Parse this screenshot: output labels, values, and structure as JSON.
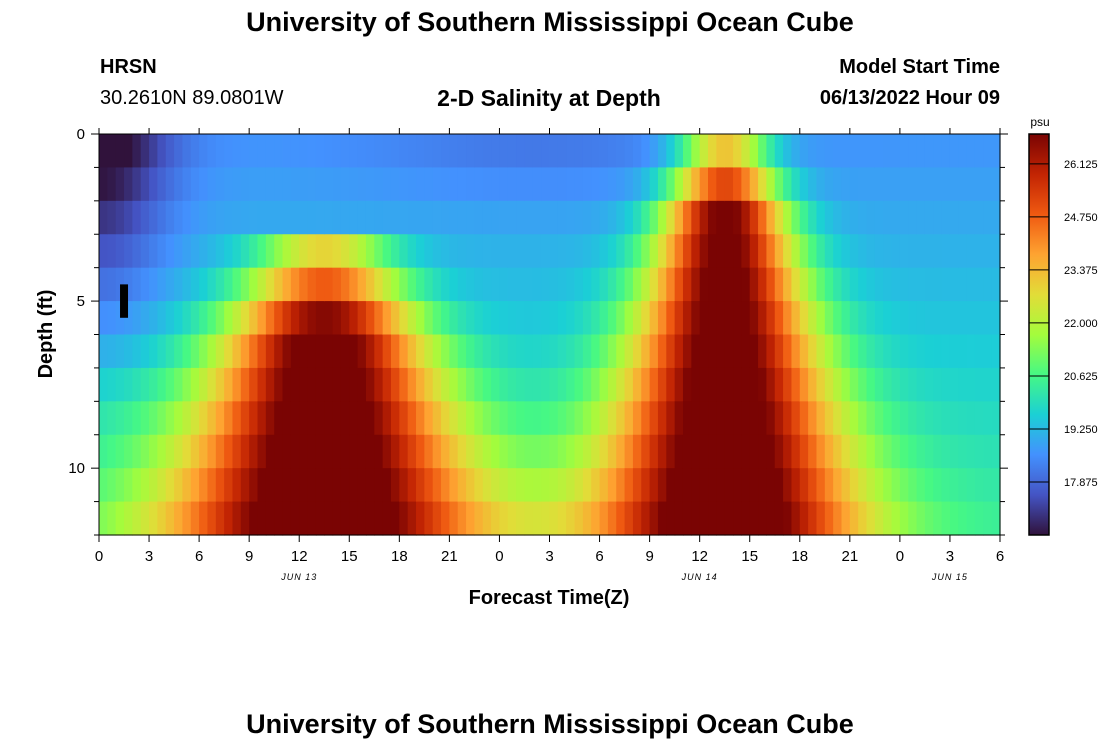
{
  "header": {
    "title": "University of Southern Mississippi Ocean Cube",
    "station": "HRSN",
    "coordinates": "30.2610N  89.0801W",
    "chart_title": "2-D Salinity at Depth",
    "model_start_label": "Model Start Time",
    "model_start_value": "06/13/2022 Hour 09"
  },
  "footer": {
    "title": "University of Southern Mississippi Ocean Cube"
  },
  "chart_data": {
    "type": "heatmap",
    "title": "2-D Salinity at Depth",
    "xlabel": "Forecast Time(Z)",
    "ylabel": "Depth (ft)",
    "x_tick_labels": [
      "0",
      "3",
      "6",
      "9",
      "12",
      "15",
      "18",
      "21",
      "0",
      "3",
      "6",
      "9",
      "12",
      "15",
      "18",
      "21",
      "0",
      "3",
      "6"
    ],
    "date_labels": [
      {
        "label": "JUN 13",
        "hour": 12
      },
      {
        "label": "JUN 14",
        "hour": 36
      },
      {
        "label": "JUN 15",
        "hour": 51
      }
    ],
    "x_range_hours": [
      0,
      54
    ],
    "y_ticks": [
      0,
      5,
      10
    ],
    "y_range_ft": [
      0,
      12
    ],
    "depth_layers": 12,
    "colorbar": {
      "unit": "psu",
      "ticks": [
        "26.125",
        "24.750",
        "23.375",
        "22.000",
        "20.625",
        "19.250",
        "17.875"
      ],
      "range": [
        16.5,
        26.9
      ],
      "colors": [
        "#30123b",
        "#4454c4",
        "#4391fe",
        "#1bd0d5",
        "#46f884",
        "#a4fc3c",
        "#e2dc38",
        "#fea331",
        "#ef5911",
        "#c22403",
        "#7a0403"
      ]
    },
    "model": {
      "background": 18.6,
      "surface_low": 16.6,
      "tidal_peaks": [
        {
          "center_hour": 13.5,
          "amplitude": 8.2,
          "half_width_top": 4.0,
          "half_width_bottom": 9.5,
          "depth_top": 3.5
        },
        {
          "center_hour": 37.5,
          "amplitude": 8.2,
          "half_width_top": 2.5,
          "half_width_bottom": 8.0,
          "depth_top": 0.0
        }
      ],
      "marker": {
        "hour": 1.5,
        "depth_from": 4.5,
        "depth_to": 5.5
      }
    }
  }
}
